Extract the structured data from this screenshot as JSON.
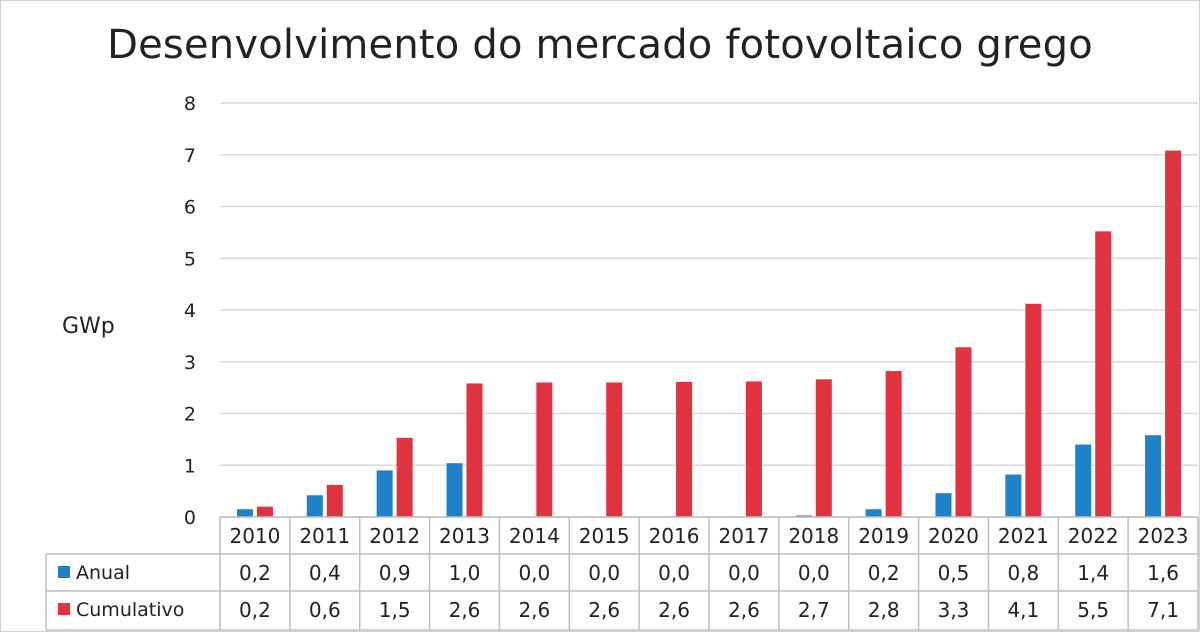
{
  "chart_data": {
    "type": "bar",
    "title": "Desenvolvimento do mercado fotovoltaico grego",
    "ylabel": "GWp",
    "xlabel": "",
    "ylim": [
      0,
      8
    ],
    "yticks": [
      0,
      1,
      2,
      3,
      4,
      5,
      6,
      7,
      8
    ],
    "grid": true,
    "categories": [
      "2010",
      "2011",
      "2012",
      "2013",
      "2014",
      "2015",
      "2016",
      "2017",
      "2018",
      "2019",
      "2020",
      "2021",
      "2022",
      "2023"
    ],
    "series": [
      {
        "name": "Anual",
        "color": "#1f82c8",
        "values": [
          0.15,
          0.42,
          0.9,
          1.04,
          0.0,
          0.0,
          0.0,
          0.0,
          0.03,
          0.15,
          0.46,
          0.82,
          1.4,
          1.58
        ],
        "labels": [
          "0,2",
          "0,4",
          "0,9",
          "1,0",
          "0,0",
          "0,0",
          "0,0",
          "0,0",
          "0,0",
          "0,2",
          "0,5",
          "0,8",
          "1,4",
          "1,6"
        ]
      },
      {
        "name": "Cumulativo",
        "color": "#e0323f",
        "values": [
          0.2,
          0.62,
          1.53,
          2.58,
          2.6,
          2.6,
          2.61,
          2.62,
          2.66,
          2.82,
          3.28,
          4.12,
          5.52,
          7.08
        ],
        "labels": [
          "0,2",
          "0,6",
          "1,5",
          "2,6",
          "2,6",
          "2,6",
          "2,6",
          "2,6",
          "2,7",
          "2,8",
          "3,3",
          "4,1",
          "5,5",
          "7,1"
        ]
      }
    ]
  }
}
